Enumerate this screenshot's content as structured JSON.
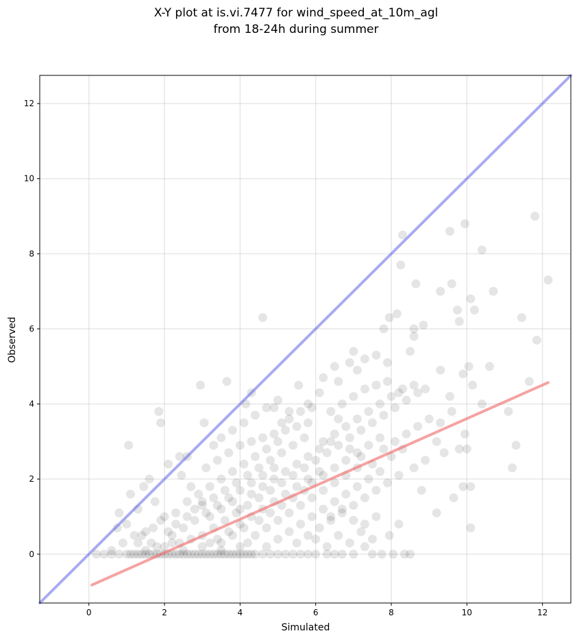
{
  "chart_data": {
    "type": "scatter",
    "title_lines": [
      "X-Y plot at is.vi.7477 for wind_speed_at_10m_agl",
      "from 18-24h during summer"
    ],
    "xlabel": "Simulated",
    "ylabel": "Observed",
    "xlim": [
      -1.3,
      12.75
    ],
    "ylim": [
      -1.3,
      12.75
    ],
    "xticks": [
      0,
      2,
      4,
      6,
      8,
      10,
      12
    ],
    "yticks": [
      0,
      2,
      4,
      6,
      8,
      10,
      12
    ],
    "grid": true,
    "point_color": "#000000",
    "point_opacity": 0.1,
    "points": [
      [
        1.05,
        2.9
      ],
      [
        1.85,
        3.8
      ],
      [
        1.9,
        3.5
      ],
      [
        2.95,
        4.5
      ],
      [
        3.05,
        3.5
      ],
      [
        3.65,
        4.6
      ],
      [
        4.3,
        4.3
      ],
      [
        4.6,
        6.3
      ],
      [
        4.15,
        4.0
      ],
      [
        1.1,
        1.6
      ],
      [
        1.3,
        1.2
      ],
      [
        1.45,
        1.8
      ],
      [
        1.6,
        2.0
      ],
      [
        1.75,
        1.4
      ],
      [
        2.0,
        1.0
      ],
      [
        2.1,
        2.4
      ],
      [
        2.4,
        2.6
      ],
      [
        2.6,
        2.6
      ],
      [
        2.45,
        2.1
      ],
      [
        2.7,
        1.8
      ],
      [
        0.8,
        1.1
      ],
      [
        0.75,
        0.7
      ],
      [
        1.0,
        0.8
      ],
      [
        1.2,
        0.5
      ],
      [
        1.5,
        0.6
      ],
      [
        1.3,
        0.3
      ],
      [
        0.9,
        0.3
      ],
      [
        0.6,
        0.1
      ],
      [
        1.65,
        0.3
      ],
      [
        1.8,
        0.2
      ],
      [
        5.55,
        4.5
      ],
      [
        5.1,
        3.5
      ],
      [
        5.3,
        3.8
      ],
      [
        4.9,
        3.9
      ],
      [
        5.8,
        4.0
      ],
      [
        6.1,
        4.3
      ],
      [
        6.2,
        4.7
      ],
      [
        6.5,
        5.0
      ],
      [
        6.6,
        4.6
      ],
      [
        6.9,
        5.1
      ],
      [
        7.0,
        5.4
      ],
      [
        7.3,
        5.2
      ],
      [
        7.1,
        4.9
      ],
      [
        7.6,
        5.3
      ],
      [
        7.8,
        6.0
      ],
      [
        7.95,
        6.3
      ],
      [
        8.15,
        6.4
      ],
      [
        7.9,
        5.1
      ],
      [
        8.5,
        5.4
      ],
      [
        8.6,
        5.8
      ],
      [
        8.6,
        6.0
      ],
      [
        8.85,
        6.1
      ],
      [
        8.3,
        8.5
      ],
      [
        8.25,
        7.7
      ],
      [
        8.65,
        7.2
      ],
      [
        9.3,
        7.0
      ],
      [
        9.6,
        7.2
      ],
      [
        9.75,
        6.5
      ],
      [
        9.8,
        6.2
      ],
      [
        10.1,
        6.8
      ],
      [
        10.2,
        6.5
      ],
      [
        9.55,
        8.6
      ],
      [
        9.95,
        8.8
      ],
      [
        10.4,
        8.1
      ],
      [
        10.7,
        7.0
      ],
      [
        11.45,
        6.3
      ],
      [
        11.8,
        9.0
      ],
      [
        11.85,
        5.7
      ],
      [
        12.15,
        7.3
      ],
      [
        11.65,
        4.6
      ],
      [
        9.3,
        4.9
      ],
      [
        9.55,
        4.2
      ],
      [
        9.9,
        4.8
      ],
      [
        10.05,
        5.0
      ],
      [
        10.15,
        4.5
      ],
      [
        10.4,
        4.0
      ],
      [
        10.6,
        5.0
      ],
      [
        11.1,
        3.8
      ],
      [
        11.3,
        2.9
      ],
      [
        11.2,
        2.3
      ],
      [
        8.8,
        1.7
      ],
      [
        9.2,
        1.1
      ],
      [
        9.65,
        1.5
      ],
      [
        9.9,
        1.8
      ],
      [
        10.1,
        1.8
      ],
      [
        10.1,
        0.7
      ],
      [
        9.95,
        3.2
      ],
      [
        10.0,
        2.8
      ],
      [
        9.8,
        2.8
      ],
      [
        9.2,
        3.0
      ],
      [
        8.5,
        0.0
      ],
      [
        8.35,
        0.0
      ],
      [
        8.05,
        0.0
      ],
      [
        7.95,
        0.5
      ],
      [
        8.2,
        0.8
      ],
      [
        7.75,
        0.0
      ],
      [
        7.5,
        0.0
      ],
      [
        7.6,
        1.0
      ],
      [
        7.3,
        0.2
      ],
      [
        7.0,
        0.0
      ],
      [
        6.7,
        0.0
      ],
      [
        6.5,
        0.0
      ],
      [
        6.3,
        0.0
      ],
      [
        6.0,
        0.0
      ],
      [
        5.8,
        0.0
      ],
      [
        5.6,
        0.0
      ],
      [
        5.4,
        0.0
      ],
      [
        5.2,
        0.0
      ],
      [
        5.0,
        0.0
      ],
      [
        4.8,
        0.0
      ],
      [
        4.6,
        0.0
      ],
      [
        4.4,
        0.0
      ],
      [
        4.2,
        0.0
      ],
      [
        4.0,
        0.0
      ],
      [
        3.8,
        0.0
      ],
      [
        3.6,
        0.0
      ],
      [
        3.4,
        0.0
      ],
      [
        3.2,
        0.0
      ],
      [
        3.0,
        0.0
      ],
      [
        2.8,
        0.0
      ],
      [
        2.6,
        0.0
      ],
      [
        2.4,
        0.0
      ],
      [
        2.2,
        0.0
      ],
      [
        2.0,
        0.0
      ],
      [
        1.8,
        0.0
      ],
      [
        1.6,
        0.0
      ],
      [
        1.4,
        0.0
      ],
      [
        1.2,
        0.0
      ],
      [
        1.0,
        0.0
      ],
      [
        0.8,
        0.0
      ],
      [
        0.6,
        0.0
      ],
      [
        0.4,
        0.0
      ],
      [
        0.2,
        0.0
      ],
      [
        1.1,
        0.0
      ],
      [
        1.3,
        0.0
      ],
      [
        1.5,
        0.0
      ],
      [
        1.7,
        0.0
      ],
      [
        1.9,
        0.0
      ],
      [
        2.1,
        0.0
      ],
      [
        2.3,
        0.0
      ],
      [
        2.5,
        0.0
      ],
      [
        2.7,
        0.0
      ],
      [
        2.9,
        0.0
      ],
      [
        3.1,
        0.0
      ],
      [
        3.3,
        0.0
      ],
      [
        3.5,
        0.0
      ],
      [
        3.7,
        0.0
      ],
      [
        3.9,
        0.0
      ],
      [
        4.1,
        0.0
      ],
      [
        4.3,
        0.0
      ],
      [
        1.5,
        0.1
      ],
      [
        2.5,
        0.1
      ],
      [
        3.5,
        0.1
      ],
      [
        2.0,
        0.2
      ],
      [
        3.0,
        0.2
      ],
      [
        4.0,
        0.2
      ],
      [
        2.2,
        0.3
      ],
      [
        3.2,
        0.3
      ],
      [
        4.2,
        0.3
      ],
      [
        4.7,
        0.2
      ],
      [
        2.2,
        0.5
      ],
      [
        2.5,
        0.7
      ],
      [
        2.8,
        0.9
      ],
      [
        3.1,
        1.1
      ],
      [
        3.4,
        1.3
      ],
      [
        3.7,
        1.5
      ],
      [
        4.0,
        1.7
      ],
      [
        4.3,
        1.9
      ],
      [
        4.6,
        2.1
      ],
      [
        4.9,
        2.3
      ],
      [
        2.3,
        1.1
      ],
      [
        2.6,
        1.4
      ],
      [
        2.9,
        1.6
      ],
      [
        3.2,
        1.8
      ],
      [
        3.5,
        2.0
      ],
      [
        3.8,
        2.2
      ],
      [
        4.1,
        2.4
      ],
      [
        4.4,
        2.6
      ],
      [
        4.7,
        2.8
      ],
      [
        5.0,
        3.0
      ],
      [
        3.0,
        1.3
      ],
      [
        3.3,
        1.5
      ],
      [
        3.6,
        1.7
      ],
      [
        3.9,
        1.9
      ],
      [
        4.2,
        2.1
      ],
      [
        4.5,
        2.3
      ],
      [
        4.8,
        2.5
      ],
      [
        5.1,
        2.7
      ],
      [
        5.4,
        2.9
      ],
      [
        5.7,
        3.1
      ],
      [
        3.1,
        2.3
      ],
      [
        3.4,
        2.5
      ],
      [
        3.7,
        2.7
      ],
      [
        4.0,
        2.9
      ],
      [
        4.3,
        3.0
      ],
      [
        4.6,
        3.1
      ],
      [
        4.9,
        3.2
      ],
      [
        5.2,
        3.3
      ],
      [
        5.5,
        3.4
      ],
      [
        5.8,
        3.5
      ],
      [
        3.3,
        2.9
      ],
      [
        3.5,
        3.1
      ],
      [
        3.8,
        3.3
      ],
      [
        4.1,
        3.5
      ],
      [
        4.4,
        3.7
      ],
      [
        4.7,
        3.9
      ],
      [
        5.0,
        4.1
      ],
      [
        5.3,
        3.6
      ],
      [
        5.6,
        3.8
      ],
      [
        5.9,
        3.9
      ],
      [
        3.0,
        0.5
      ],
      [
        3.3,
        0.7
      ],
      [
        3.6,
        0.9
      ],
      [
        3.9,
        1.1
      ],
      [
        4.2,
        1.3
      ],
      [
        4.5,
        1.5
      ],
      [
        4.8,
        1.7
      ],
      [
        5.1,
        1.9
      ],
      [
        5.4,
        2.1
      ],
      [
        5.7,
        2.3
      ],
      [
        3.4,
        0.4
      ],
      [
        3.7,
        0.6
      ],
      [
        4.0,
        0.8
      ],
      [
        4.3,
        1.0
      ],
      [
        4.6,
        1.2
      ],
      [
        4.9,
        1.4
      ],
      [
        5.2,
        1.6
      ],
      [
        5.5,
        1.8
      ],
      [
        5.8,
        2.0
      ],
      [
        6.1,
        2.2
      ],
      [
        4.4,
        0.5
      ],
      [
        4.7,
        0.7
      ],
      [
        5.0,
        0.9
      ],
      [
        5.3,
        1.1
      ],
      [
        5.6,
        1.3
      ],
      [
        5.9,
        1.5
      ],
      [
        6.2,
        1.7
      ],
      [
        6.5,
        1.9
      ],
      [
        6.8,
        2.1
      ],
      [
        7.1,
        2.3
      ],
      [
        5.0,
        0.4
      ],
      [
        5.3,
        0.6
      ],
      [
        5.6,
        0.8
      ],
      [
        5.9,
        1.0
      ],
      [
        6.2,
        1.2
      ],
      [
        6.5,
        1.4
      ],
      [
        6.8,
        1.6
      ],
      [
        7.1,
        1.8
      ],
      [
        7.4,
        2.0
      ],
      [
        7.7,
        2.2
      ],
      [
        5.5,
        0.3
      ],
      [
        5.8,
        0.5
      ],
      [
        6.1,
        0.7
      ],
      [
        6.4,
        0.9
      ],
      [
        6.7,
        1.1
      ],
      [
        7.0,
        1.3
      ],
      [
        7.3,
        1.5
      ],
      [
        7.6,
        1.7
      ],
      [
        7.9,
        1.9
      ],
      [
        8.2,
        2.1
      ],
      [
        6.0,
        2.5
      ],
      [
        6.3,
        2.7
      ],
      [
        6.6,
        2.9
      ],
      [
        6.9,
        3.1
      ],
      [
        7.2,
        3.3
      ],
      [
        7.5,
        3.5
      ],
      [
        7.8,
        3.7
      ],
      [
        8.1,
        3.9
      ],
      [
        8.4,
        4.1
      ],
      [
        8.7,
        4.3
      ],
      [
        6.2,
        3.0
      ],
      [
        6.5,
        3.2
      ],
      [
        6.8,
        3.4
      ],
      [
        7.1,
        3.6
      ],
      [
        7.4,
        3.8
      ],
      [
        7.7,
        4.0
      ],
      [
        8.0,
        4.2
      ],
      [
        8.3,
        4.4
      ],
      [
        8.6,
        4.5
      ],
      [
        8.9,
        4.4
      ],
      [
        6.4,
        3.8
      ],
      [
        6.7,
        4.0
      ],
      [
        7.0,
        4.2
      ],
      [
        7.3,
        4.4
      ],
      [
        7.6,
        4.5
      ],
      [
        7.9,
        4.6
      ],
      [
        8.2,
        4.3
      ],
      [
        6.6,
        3.6
      ],
      [
        6.9,
        2.8
      ],
      [
        7.2,
        2.6
      ],
      [
        7.5,
        2.4
      ],
      [
        7.8,
        2.8
      ],
      [
        8.1,
        3.0
      ],
      [
        8.4,
        3.2
      ],
      [
        8.7,
        3.4
      ],
      [
        9.0,
        3.6
      ],
      [
        9.3,
        3.5
      ],
      [
        9.6,
        3.8
      ],
      [
        8.9,
        2.5
      ],
      [
        9.4,
        2.7
      ],
      [
        8.3,
        2.8
      ],
      [
        8.6,
        2.3
      ],
      [
        8.0,
        2.6
      ],
      [
        7.7,
        3.1
      ],
      [
        7.4,
        2.9
      ],
      [
        7.1,
        2.7
      ],
      [
        6.8,
        2.5
      ],
      [
        6.5,
        2.3
      ],
      [
        6.2,
        2.1
      ],
      [
        5.9,
        1.9
      ],
      [
        6.0,
        0.4
      ],
      [
        6.3,
        0.2
      ],
      [
        6.6,
        0.5
      ],
      [
        6.9,
        0.3
      ],
      [
        7.2,
        0.6
      ],
      [
        7.5,
        0.4
      ],
      [
        6.4,
        1.0
      ],
      [
        6.7,
        1.2
      ],
      [
        7.0,
        0.9
      ],
      [
        7.3,
        0.8
      ],
      [
        4.5,
        0.9
      ],
      [
        4.8,
        1.1
      ],
      [
        5.1,
        1.3
      ],
      [
        5.4,
        1.5
      ],
      [
        5.7,
        1.7
      ],
      [
        4.1,
        0.7
      ],
      [
        3.8,
        0.5
      ],
      [
        3.5,
        0.3
      ],
      [
        2.7,
        0.4
      ],
      [
        2.4,
        0.3
      ],
      [
        1.4,
        0.5
      ],
      [
        1.7,
        0.7
      ],
      [
        1.9,
        0.9
      ],
      [
        2.1,
        0.6
      ],
      [
        2.3,
        0.8
      ],
      [
        2.6,
        1.0
      ],
      [
        2.8,
        1.2
      ],
      [
        3.0,
        1.4
      ],
      [
        3.2,
        1.0
      ],
      [
        3.5,
        1.2
      ],
      [
        3.8,
        1.4
      ],
      [
        4.0,
        1.2
      ],
      [
        4.3,
        1.6
      ],
      [
        4.6,
        1.8
      ],
      [
        4.9,
        2.0
      ],
      [
        5.2,
        2.2
      ],
      [
        5.5,
        2.4
      ],
      [
        5.8,
        2.6
      ],
      [
        6.1,
        2.8
      ],
      [
        6.4,
        3.0
      ]
    ],
    "lines": [
      {
        "x": [
          -1.3,
          12.75
        ],
        "y": [
          -1.3,
          12.75
        ],
        "color": "#6464e8",
        "opacity": 0.55,
        "width": 4
      },
      {
        "x": [
          0.08,
          12.15
        ],
        "y": [
          -0.82,
          4.57
        ],
        "color": "#f06464",
        "opacity": 0.6,
        "width": 4
      }
    ]
  }
}
